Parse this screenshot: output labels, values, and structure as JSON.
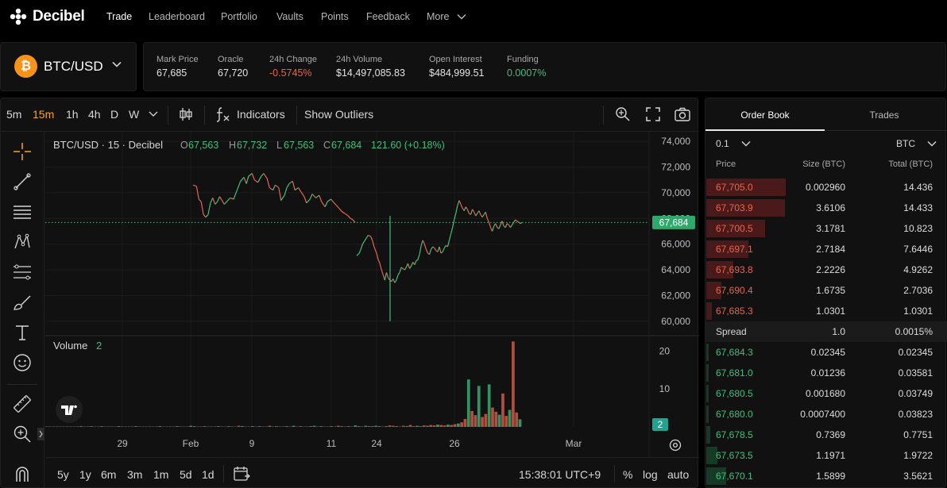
{
  "app": {
    "name": "Decibel"
  },
  "nav": {
    "items": [
      {
        "label": "Trade",
        "active": true
      },
      {
        "label": "Leaderboard"
      },
      {
        "label": "Portfolio"
      },
      {
        "label": "Vaults"
      },
      {
        "label": "Points"
      },
      {
        "label": "Feedback"
      },
      {
        "label": "More"
      }
    ]
  },
  "market": {
    "pair": "BTC/USD",
    "coin_symbol": "₿",
    "stats": [
      {
        "label": "Mark Price",
        "value": "67,685"
      },
      {
        "label": "Oracle",
        "value": "67,720"
      },
      {
        "label": "24h Change",
        "value": "-0.5745%",
        "tone": "negative"
      },
      {
        "label": "24h Volume",
        "value": "$14,497,085.83"
      },
      {
        "label": "Open Interest",
        "value": "$484,999.51"
      },
      {
        "label": "Funding",
        "value": "0.0007%",
        "tone": "positive"
      }
    ]
  },
  "chart_toolbar": {
    "intervals": [
      "5m",
      "15m",
      "1h",
      "4h",
      "D",
      "W"
    ],
    "active_interval": "15m",
    "indicators_label": "Indicators",
    "outliers_label": "Show Outliers"
  },
  "chart_footer": {
    "ranges": [
      "5y",
      "1y",
      "6m",
      "3m",
      "1m",
      "5d",
      "1d"
    ],
    "time": "15:38:01 UTC+9",
    "percent_label": "%",
    "log_label": "log",
    "auto_label": "auto"
  },
  "chart_data": {
    "type": "line",
    "title": "BTC/USD · 15 · Decibel",
    "ohlc": {
      "o_label": "O",
      "o": "67,563",
      "h_label": "H",
      "h": "67,732",
      "l_label": "L",
      "l": "67,563",
      "c_label": "C",
      "c": "67,684",
      "change": "121.60 (+0.18%)"
    },
    "last_price_label": "67,684",
    "last_price": 67684,
    "ylim": [
      59500,
      74500
    ],
    "y_ticks": [
      "74,000",
      "72,000",
      "70,000",
      "68,000",
      "66,000",
      "64,000",
      "62,000",
      "60,000"
    ],
    "x_ticks": [
      "29",
      "Feb",
      "9",
      "11",
      "24",
      "26",
      "Mar"
    ],
    "price_series": [
      {
        "name": "segment-1",
        "points": [
          [
            0,
            70600
          ],
          [
            3,
            70500
          ],
          [
            5,
            69500
          ],
          [
            7,
            69300
          ],
          [
            9,
            68300
          ],
          [
            11,
            68100
          ],
          [
            13,
            68300
          ],
          [
            15,
            69200
          ],
          [
            17,
            69600
          ],
          [
            19,
            69100
          ],
          [
            21,
            69300
          ],
          [
            23,
            69700
          ],
          [
            25,
            69400
          ],
          [
            27,
            69100
          ],
          [
            29,
            69300
          ],
          [
            32,
            69600
          ],
          [
            35,
            69500
          ],
          [
            38,
            70200
          ],
          [
            41,
            70900
          ],
          [
            44,
            71200
          ],
          [
            46,
            70700
          ],
          [
            48,
            71300
          ],
          [
            51,
            71500
          ],
          [
            53,
            71000
          ],
          [
            56,
            70800
          ],
          [
            59,
            71300
          ],
          [
            61,
            71500
          ],
          [
            64,
            71100
          ],
          [
            66,
            70400
          ],
          [
            69,
            70200
          ],
          [
            71,
            70600
          ],
          [
            74,
            70400
          ],
          [
            76,
            69400
          ],
          [
            79,
            69800
          ],
          [
            81,
            70400
          ],
          [
            83,
            70700
          ],
          [
            86,
            70900
          ],
          [
            88,
            70200
          ],
          [
            91,
            70400
          ],
          [
            93,
            70100
          ],
          [
            96,
            69700
          ],
          [
            98,
            69200
          ],
          [
            101,
            69500
          ],
          [
            103,
            69900
          ],
          [
            106,
            69600
          ],
          [
            109,
            69800
          ],
          [
            111,
            69300
          ],
          [
            114,
            68900
          ],
          [
            116,
            69300
          ],
          [
            119,
            69500
          ],
          [
            121,
            69300
          ],
          [
            124,
            69000
          ],
          [
            126,
            68800
          ],
          [
            129,
            68500
          ],
          [
            131,
            68400
          ],
          [
            134,
            68200
          ],
          [
            136,
            68000
          ],
          [
            138,
            67900
          ],
          [
            140,
            67700
          ]
        ]
      },
      {
        "name": "segment-2",
        "points": [
          [
            0,
            65100
          ],
          [
            3,
            65300
          ],
          [
            5,
            65600
          ],
          [
            7,
            66000
          ],
          [
            9,
            66200
          ],
          [
            12,
            66500
          ],
          [
            14,
            66700
          ],
          [
            17,
            66600
          ],
          [
            19,
            66300
          ],
          [
            21,
            65800
          ],
          [
            24,
            65300
          ],
          [
            26,
            64800
          ],
          [
            28,
            64500
          ],
          [
            30,
            64000
          ],
          [
            32,
            63600
          ],
          [
            34,
            63200
          ],
          [
            36,
            63800
          ],
          [
            38,
            63400
          ],
          [
            40,
            63200
          ],
          [
            42,
            63100
          ],
          [
            44,
            63300
          ],
          [
            46,
            63000
          ],
          [
            48,
            63200
          ],
          [
            50,
            63600
          ],
          [
            52,
            63800
          ],
          [
            54,
            64200
          ],
          [
            56,
            64100
          ],
          [
            58,
            64000
          ],
          [
            60,
            64200
          ],
          [
            62,
            64500
          ],
          [
            64,
            64100
          ],
          [
            66,
            64300
          ],
          [
            68,
            64600
          ],
          [
            70,
            64400
          ],
          [
            72,
            64700
          ],
          [
            74,
            64800
          ],
          [
            76,
            65200
          ],
          [
            78,
            65900
          ],
          [
            80,
            66300
          ],
          [
            82,
            66000
          ],
          [
            84,
            65600
          ],
          [
            86,
            65300
          ],
          [
            88,
            65200
          ],
          [
            90,
            65600
          ],
          [
            92,
            65800
          ],
          [
            94,
            65700
          ],
          [
            96,
            65500
          ],
          [
            98,
            65400
          ],
          [
            100,
            65800
          ],
          [
            102,
            65300
          ],
          [
            104,
            65400
          ],
          [
            106,
            65700
          ],
          [
            108,
            65900
          ],
          [
            110,
            65800
          ],
          [
            112,
            66300
          ],
          [
            114,
            66800
          ],
          [
            116,
            67300
          ],
          [
            118,
            67900
          ],
          [
            120,
            68400
          ],
          [
            122,
            69000
          ],
          [
            124,
            69400
          ],
          [
            126,
            69100
          ],
          [
            128,
            68800
          ],
          [
            130,
            68600
          ],
          [
            132,
            68900
          ],
          [
            134,
            68700
          ],
          [
            136,
            68400
          ],
          [
            138,
            68300
          ],
          [
            140,
            68700
          ],
          [
            142,
            68500
          ],
          [
            144,
            68200
          ],
          [
            146,
            68400
          ],
          [
            148,
            68600
          ],
          [
            150,
            68300
          ],
          [
            152,
            68100
          ],
          [
            154,
            68300
          ],
          [
            156,
            68500
          ],
          [
            158,
            68000
          ],
          [
            160,
            67700
          ],
          [
            162,
            67300
          ],
          [
            164,
            67000
          ],
          [
            166,
            67400
          ],
          [
            168,
            67600
          ],
          [
            170,
            67300
          ],
          [
            172,
            67200
          ],
          [
            174,
            67500
          ],
          [
            176,
            67800
          ],
          [
            178,
            67400
          ],
          [
            180,
            67300
          ],
          [
            182,
            67600
          ],
          [
            184,
            67500
          ],
          [
            186,
            67300
          ],
          [
            188,
            67500
          ],
          [
            190,
            67700
          ],
          [
            192,
            67900
          ],
          [
            194,
            67800
          ],
          [
            196,
            67700
          ],
          [
            198,
            67600
          ],
          [
            200,
            67684
          ]
        ]
      }
    ],
    "volume": {
      "label": "Volume",
      "current": "2",
      "y_ticks": [
        "20",
        "10"
      ],
      "ylim": [
        0,
        23
      ],
      "last_label": "2",
      "bars": [
        0.1,
        0.1,
        0.1,
        0.1,
        0.1,
        0.1,
        0.1,
        0.1,
        0.1,
        0.1,
        0.2,
        0.1,
        0.1,
        0.2,
        0.1,
        0.1,
        0.2,
        0.1,
        0.1,
        0.1,
        0.1,
        0.2,
        0.1,
        0.1,
        0.1,
        0.1,
        0.2,
        0.1,
        0.1,
        0.1,
        0.1,
        0.1,
        0.1,
        0.2,
        0.1,
        0.1,
        0.1,
        0.1,
        0.2,
        0.1,
        0.1,
        0.1,
        0.3,
        0.2,
        0.1,
        0.1,
        0.2,
        0.1,
        0.1,
        0.1,
        0.2,
        0.1,
        0.1,
        0.2,
        0.1,
        0.1,
        0.3,
        0.2,
        0.1,
        0.1,
        0.2,
        0.1,
        0.2,
        0.1,
        0.1,
        0.3,
        0.1,
        0.2,
        0.1,
        0.1,
        0.2,
        0.1,
        0.3,
        0.1,
        0.2,
        0.1,
        0.1,
        0.2,
        0.3,
        0.1,
        0.2,
        0.1,
        0.1,
        0.2,
        0.1,
        0.3,
        0.2,
        0.1,
        0.2,
        0.1,
        0.4,
        0.2,
        0.1,
        0.3,
        0.2,
        0.2,
        0.3,
        0.2,
        0.1,
        0.2,
        0.4,
        0.3,
        0.2,
        0.1,
        0.3,
        0.2,
        0.5,
        0.2,
        0.3,
        0.2,
        0.4,
        0.3,
        0.5,
        0.4,
        0.6,
        0.5,
        0.4,
        0.6,
        0.5,
        0.7,
        0.9,
        1.2,
        2.1,
        12.5,
        4.2,
        3.1,
        10.8,
        2.6,
        3.4,
        11.2,
        5.1,
        4.0,
        3.2,
        8.8,
        2.9,
        4.5,
        22.5,
        3.8,
        2.0
      ]
    }
  },
  "order_book": {
    "tabs": [
      {
        "label": "Order Book",
        "active": true
      },
      {
        "label": "Trades"
      }
    ],
    "tick_size": "0.1",
    "unit": "BTC",
    "headers": {
      "price": "Price",
      "size": "Size (BTC)",
      "total": "Total (BTC)"
    },
    "asks": [
      {
        "price": "67,705.0",
        "size": "0.002960",
        "total": "14.436",
        "depth": 1.0
      },
      {
        "price": "67,703.9",
        "size": "3.6106",
        "total": "14.433",
        "depth": 0.99
      },
      {
        "price": "67,700.5",
        "size": "3.1781",
        "total": "10.823",
        "depth": 0.74
      },
      {
        "price": "67,697.1",
        "size": "2.7184",
        "total": "7.6446",
        "depth": 0.53
      },
      {
        "price": "67,693.8",
        "size": "2.2226",
        "total": "4.9262",
        "depth": 0.34
      },
      {
        "price": "67,690.4",
        "size": "1.6735",
        "total": "2.7036",
        "depth": 0.19
      },
      {
        "price": "67,685.3",
        "size": "1.0301",
        "total": "1.0301",
        "depth": 0.07
      }
    ],
    "spread": {
      "label": "Spread",
      "value": "1.0",
      "percent": "0.0015%"
    },
    "bids": [
      {
        "price": "67,684.3",
        "size": "0.02345",
        "total": "0.02345",
        "depth": 0.01
      },
      {
        "price": "67,681.0",
        "size": "0.01236",
        "total": "0.03581",
        "depth": 0.01
      },
      {
        "price": "67,680.5",
        "size": "0.001680",
        "total": "0.03749",
        "depth": 0.01
      },
      {
        "price": "67,680.0",
        "size": "0.0007400",
        "total": "0.03823",
        "depth": 0.01
      },
      {
        "price": "67,678.5",
        "size": "0.7369",
        "total": "0.7751",
        "depth": 0.05
      },
      {
        "price": "67,673.5",
        "size": "1.1971",
        "total": "1.9722",
        "depth": 0.14
      },
      {
        "price": "67,670.1",
        "size": "1.5899",
        "total": "3.5621",
        "depth": 0.25
      }
    ]
  },
  "colors": {
    "accent": "#f5a623",
    "up": "#3fbf7f",
    "down": "#e4664f",
    "ask_depth": "#4a1a1a",
    "bid_depth": "#173a27",
    "last_price_tag": "#2fa86b"
  }
}
